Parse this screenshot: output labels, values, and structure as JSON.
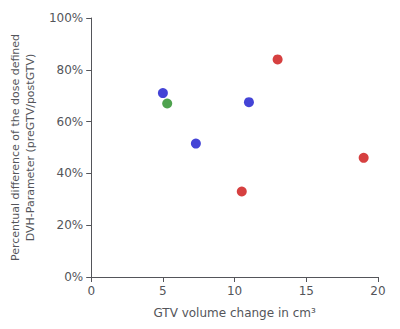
{
  "chart_data": {
    "type": "scatter",
    "xlabel": "GTV volume change in cm³",
    "ylabel": "Percentual difference of the dose defined\nDVH-Parameter (preGTV/postGTV)",
    "x": [
      5.0,
      5.3,
      7.3,
      11.0,
      10.5,
      13.0,
      19.0
    ],
    "values": [
      0.71,
      0.67,
      0.515,
      0.675,
      0.33,
      0.84,
      0.46
    ],
    "colors": [
      "#1515cc",
      "#228B22",
      "#1515cc",
      "#1515cc",
      "#cc1010",
      "#cc1010",
      "#cc1010"
    ],
    "xlim": [
      0,
      20
    ],
    "ylim": [
      0,
      1.0
    ],
    "xticks": [
      0,
      5,
      10,
      15,
      20
    ],
    "yticks": [
      {
        "value": 0.0,
        "label": "0%"
      },
      {
        "value": 0.2,
        "label": "20%"
      },
      {
        "value": 0.4,
        "label": "40%"
      },
      {
        "value": 0.6,
        "label": "60%"
      },
      {
        "value": 0.8,
        "label": "80%"
      },
      {
        "value": 1.0,
        "label": "100%"
      }
    ],
    "grid": false
  }
}
